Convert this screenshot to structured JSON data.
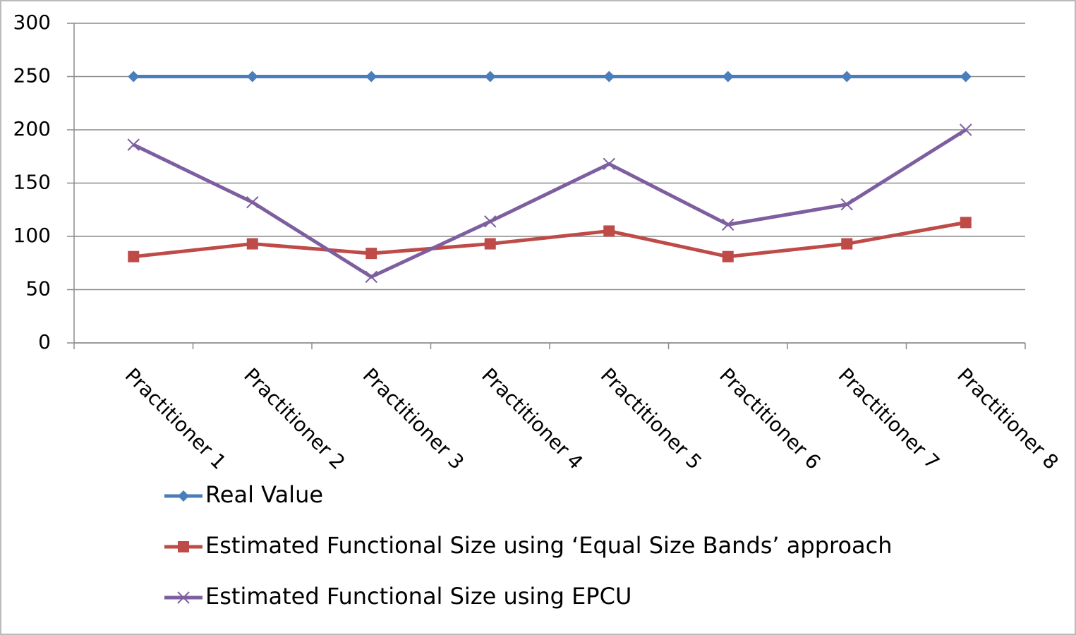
{
  "chart_data": {
    "type": "line",
    "categories": [
      "Practitioner 1",
      "Practitioner 2",
      "Practitioner 3",
      "Practitioner 4",
      "Practitioner 5",
      "Practitioner 6",
      "Practitioner 7",
      "Practitioner 8"
    ],
    "series": [
      {
        "name": "Real Value",
        "color": "#4a7ebb",
        "marker": "diamond",
        "values": [
          250,
          250,
          250,
          250,
          250,
          250,
          250,
          250
        ]
      },
      {
        "name": "Estimated Functional Size using ‘Equal Size Bands’ approach",
        "color": "#be4b48",
        "marker": "square",
        "values": [
          81,
          93,
          84,
          93,
          105,
          81,
          93,
          113
        ]
      },
      {
        "name": "Estimated Functional Size using EPCU",
        "color": "#7d5fa0",
        "marker": "x",
        "values": [
          186,
          132,
          62,
          114,
          168,
          111,
          130,
          200
        ]
      }
    ],
    "ylim": [
      0,
      300
    ],
    "yticks": [
      0,
      50,
      100,
      150,
      200,
      250,
      300
    ],
    "grid": true,
    "legend": "bottom"
  }
}
